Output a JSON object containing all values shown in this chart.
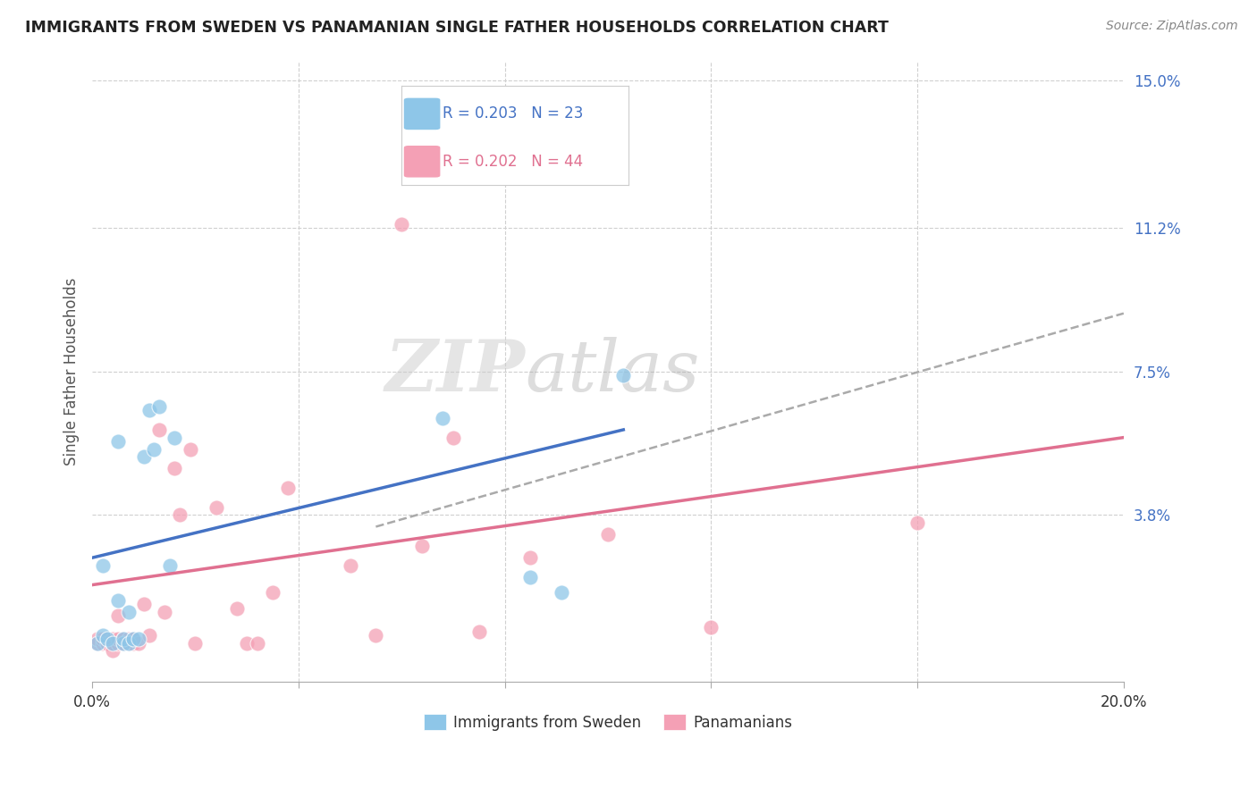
{
  "title": "IMMIGRANTS FROM SWEDEN VS PANAMANIAN SINGLE FATHER HOUSEHOLDS CORRELATION CHART",
  "source": "Source: ZipAtlas.com",
  "xlabel_label": "Immigrants from Sweden",
  "xlabel2_label": "Panamanians",
  "ylabel": "Single Father Households",
  "xlim": [
    0.0,
    0.2
  ],
  "ylim": [
    -0.005,
    0.155
  ],
  "xticks": [
    0.0,
    0.04,
    0.08,
    0.12,
    0.16,
    0.2
  ],
  "xticklabels": [
    "0.0%",
    "",
    "",
    "",
    "",
    "20.0%"
  ],
  "ytick_vals": [
    0.038,
    0.075,
    0.112,
    0.15
  ],
  "yticklabels_right": [
    "3.8%",
    "7.5%",
    "11.2%",
    "15.0%"
  ],
  "grid_color": "#d0d0d0",
  "background_color": "#ffffff",
  "watermark_zip": "ZIP",
  "watermark_atlas": "atlas",
  "legend_R1": "R = 0.203",
  "legend_N1": "N = 23",
  "legend_R2": "R = 0.202",
  "legend_N2": "N = 44",
  "color_sweden": "#8ec6e8",
  "color_panama": "#f4a0b5",
  "color_sweden_line": "#4472c4",
  "color_panama_line": "#e07090",
  "color_dashed": "#aaaaaa",
  "sweden_x": [
    0.001,
    0.002,
    0.002,
    0.003,
    0.004,
    0.005,
    0.005,
    0.006,
    0.006,
    0.007,
    0.007,
    0.008,
    0.009,
    0.01,
    0.011,
    0.012,
    0.013,
    0.015,
    0.016,
    0.068,
    0.085,
    0.091,
    0.103
  ],
  "sweden_y": [
    0.005,
    0.007,
    0.025,
    0.006,
    0.005,
    0.016,
    0.057,
    0.005,
    0.006,
    0.005,
    0.013,
    0.006,
    0.006,
    0.053,
    0.065,
    0.055,
    0.066,
    0.025,
    0.058,
    0.063,
    0.022,
    0.018,
    0.074
  ],
  "panama_x": [
    0.001,
    0.001,
    0.002,
    0.002,
    0.003,
    0.003,
    0.003,
    0.004,
    0.004,
    0.004,
    0.005,
    0.005,
    0.005,
    0.006,
    0.006,
    0.007,
    0.007,
    0.008,
    0.008,
    0.009,
    0.01,
    0.011,
    0.013,
    0.014,
    0.016,
    0.017,
    0.019,
    0.02,
    0.024,
    0.028,
    0.03,
    0.032,
    0.035,
    0.038,
    0.05,
    0.055,
    0.06,
    0.064,
    0.07,
    0.075,
    0.085,
    0.1,
    0.12,
    0.16
  ],
  "panama_y": [
    0.005,
    0.006,
    0.005,
    0.006,
    0.005,
    0.006,
    0.005,
    0.005,
    0.006,
    0.003,
    0.005,
    0.006,
    0.012,
    0.005,
    0.006,
    0.005,
    0.006,
    0.005,
    0.006,
    0.005,
    0.015,
    0.007,
    0.06,
    0.013,
    0.05,
    0.038,
    0.055,
    0.005,
    0.04,
    0.014,
    0.005,
    0.005,
    0.018,
    0.045,
    0.025,
    0.007,
    0.113,
    0.03,
    0.058,
    0.008,
    0.027,
    0.033,
    0.009,
    0.036
  ],
  "sweden_line_x0": 0.0,
  "sweden_line_x1": 0.103,
  "sweden_line_y0": 0.027,
  "sweden_line_y1": 0.06,
  "panama_line_x0": 0.0,
  "panama_line_x1": 0.2,
  "panama_line_y0": 0.02,
  "panama_line_y1": 0.058,
  "dashed_line_x0": 0.055,
  "dashed_line_x1": 0.2,
  "dashed_line_y0": 0.035,
  "dashed_line_y1": 0.09
}
